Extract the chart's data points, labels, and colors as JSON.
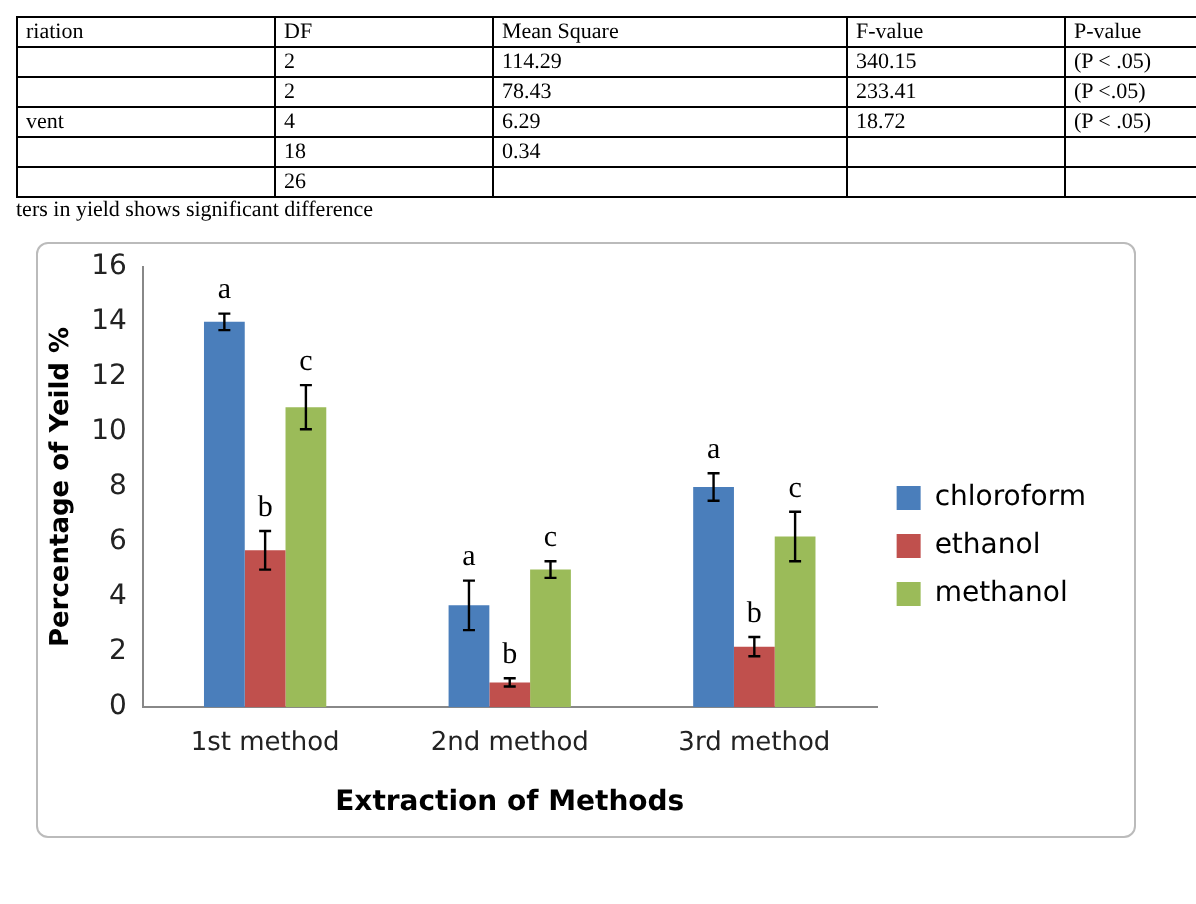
{
  "chart_data": {
    "type": "bar",
    "xlabel": "Extraction of Methods",
    "ylabel": "Percentage of Yeild %",
    "categories": [
      "1st method",
      "2nd method",
      "3rd method"
    ],
    "series": [
      {
        "name": "chloroform",
        "color": "#4a7ebb",
        "values": [
          14.0,
          3.7,
          8.0
        ],
        "errors": [
          0.3,
          0.9,
          0.5
        ]
      },
      {
        "name": "ethanol",
        "color": "#c0504d",
        "values": [
          5.7,
          0.9,
          2.2
        ],
        "errors": [
          0.7,
          0.15,
          0.35
        ]
      },
      {
        "name": "methanol",
        "color": "#9bbb59",
        "values": [
          10.9,
          5.0,
          6.2
        ],
        "errors": [
          0.8,
          0.3,
          0.9
        ]
      }
    ],
    "ylim": [
      0,
      16
    ],
    "yticks": [
      0,
      2,
      4,
      6,
      8,
      10,
      12,
      14,
      16
    ],
    "grid": false,
    "legend": "right",
    "annotations": [
      "riation",
      "DF",
      "Mean Square",
      "F-value",
      "P-value",
      "2",
      "114.29",
      "340.15",
      "(P < .05)",
      "2",
      "78.43",
      "233.41",
      "(P <.05)",
      "vent",
      "4",
      "6.29",
      "18.72",
      "(P < .05)",
      "18",
      "0.34",
      "26",
      "ters in yield shows significant difference",
      "a",
      "b",
      "c",
      "a",
      "b",
      "c",
      "a",
      "b",
      "c"
    ]
  }
}
